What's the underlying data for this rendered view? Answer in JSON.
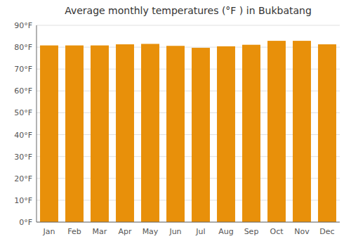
{
  "chart_data": {
    "type": "bar",
    "title": "Average monthly temperatures (°F ) in Bukbatang",
    "categories": [
      "Jan",
      "Feb",
      "Mar",
      "Apr",
      "May",
      "Jun",
      "Jul",
      "Aug",
      "Sep",
      "Oct",
      "Nov",
      "Dec"
    ],
    "values": [
      80.8,
      80.8,
      80.8,
      81.3,
      81.5,
      80.6,
      79.7,
      80.4,
      81.1,
      82.9,
      82.9,
      81.3
    ],
    "color": "#E8900A",
    "ylim": [
      0,
      90
    ],
    "yticks": [
      {
        "value": 0,
        "label": "0°F"
      },
      {
        "value": 10,
        "label": "10°F"
      },
      {
        "value": 20,
        "label": "20°F"
      },
      {
        "value": 30,
        "label": "30°F"
      },
      {
        "value": 40,
        "label": "40°F"
      },
      {
        "value": 50,
        "label": "50°F"
      },
      {
        "value": 60,
        "label": "60°F"
      },
      {
        "value": 70,
        "label": "70°F"
      },
      {
        "value": 80,
        "label": "80°F"
      },
      {
        "value": 90,
        "label": "90°F"
      }
    ],
    "grid": true
  }
}
